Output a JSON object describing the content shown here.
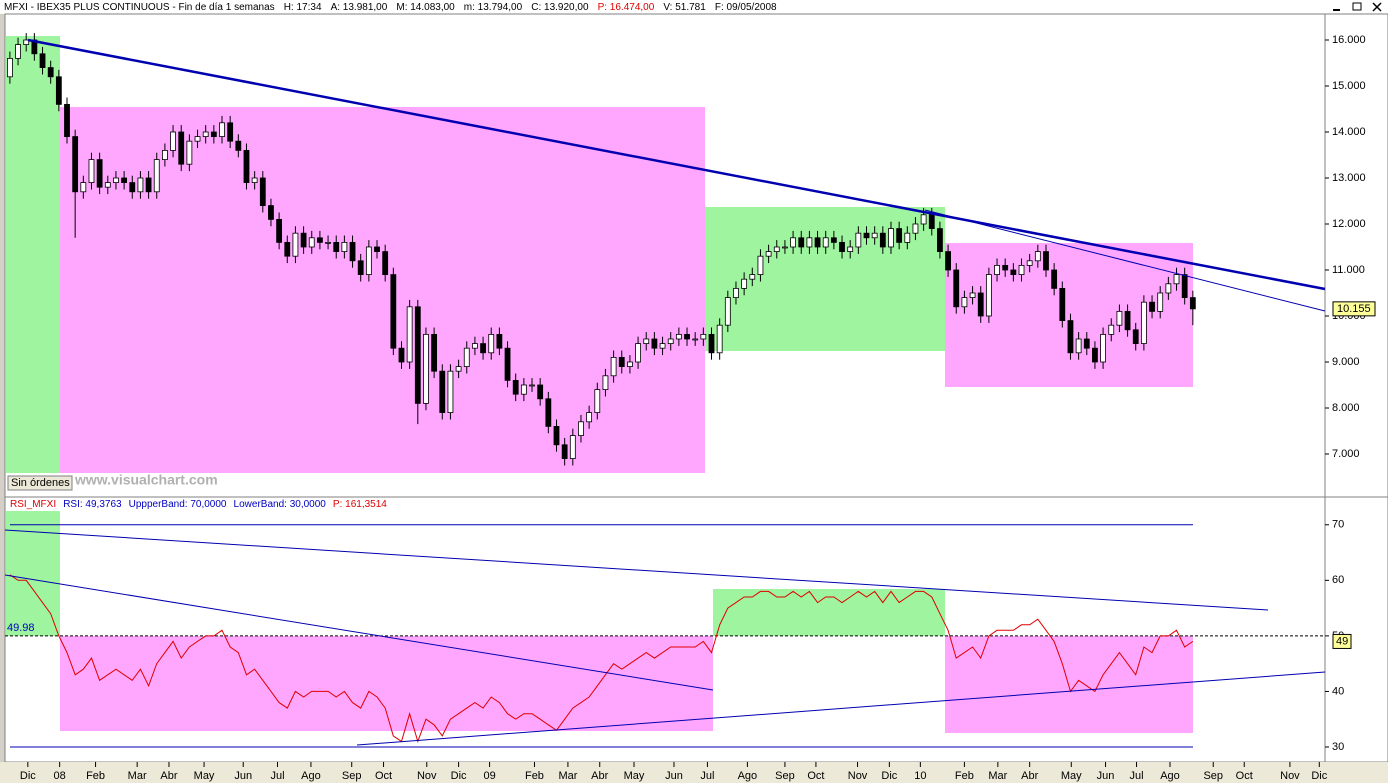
{
  "chart_data": [
    {
      "type": "candlestick",
      "title_items": [
        "MFXI - IBEX35 PLUS CONTINUOUS - Fin de día 1 semanas",
        "H: 17:34",
        "A: 13.981,00",
        "M: 14.083,00",
        "m: 13.794,00",
        "C: 13.920,00",
        "P: 16.474,00",
        "V: 51.781",
        "F: 09/05/2008"
      ],
      "status_label": "Sin órdenes",
      "watermark": "www.visualchart.com",
      "last_label": "10.155",
      "ylim": [
        6065,
        16565
      ],
      "yticks": [
        {
          "value": 7000,
          "label": "7.000"
        },
        {
          "value": 8000,
          "label": "8.000"
        },
        {
          "value": 9000,
          "label": "9.000"
        },
        {
          "value": 10000,
          "label": "10.000"
        },
        {
          "value": 11000,
          "label": "11.000"
        },
        {
          "value": 12000,
          "label": "12.000"
        },
        {
          "value": 13000,
          "label": "13.000"
        },
        {
          "value": 14000,
          "label": "14.000"
        },
        {
          "value": 15000,
          "label": "15.000"
        },
        {
          "value": 16000,
          "label": "16.000"
        }
      ],
      "up_color": "#ffffff",
      "down_color": "#000000",
      "candles": [
        [
          15200,
          15750,
          15050,
          15600
        ],
        [
          15600,
          16050,
          15450,
          15900
        ],
        [
          15900,
          16150,
          15750,
          16000
        ],
        [
          16000,
          16150,
          15550,
          15700
        ],
        [
          15700,
          15850,
          15250,
          15400
        ],
        [
          15400,
          15550,
          15050,
          15200
        ],
        [
          15200,
          15350,
          14450,
          14600
        ],
        [
          14600,
          14750,
          13750,
          13900
        ],
        [
          13900,
          14050,
          11700,
          12700
        ],
        [
          12700,
          13050,
          12550,
          12900
        ],
        [
          12900,
          13550,
          12750,
          13400
        ],
        [
          13400,
          13550,
          12650,
          12800
        ],
        [
          12800,
          13050,
          12650,
          12900
        ],
        [
          12900,
          13150,
          12750,
          13000
        ],
        [
          13000,
          13150,
          12750,
          12900
        ],
        [
          12900,
          13050,
          12550,
          12700
        ],
        [
          12700,
          13150,
          12550,
          13000
        ],
        [
          13000,
          13150,
          12550,
          12700
        ],
        [
          12700,
          13550,
          12550,
          13400
        ],
        [
          13400,
          13750,
          13250,
          13600
        ],
        [
          13600,
          14150,
          13450,
          14000
        ],
        [
          14000,
          14150,
          13150,
          13300
        ],
        [
          13300,
          13950,
          13150,
          13800
        ],
        [
          13800,
          14050,
          13650,
          13900
        ],
        [
          13900,
          14150,
          13750,
          14000
        ],
        [
          14000,
          14150,
          13750,
          13900
        ],
        [
          13900,
          14350,
          13750,
          14200
        ],
        [
          14200,
          14350,
          13650,
          13800
        ],
        [
          13800,
          13950,
          13450,
          13600
        ],
        [
          13600,
          13750,
          12750,
          12900
        ],
        [
          12900,
          13150,
          12750,
          13000
        ],
        [
          13000,
          13150,
          12250,
          12400
        ],
        [
          12400,
          12550,
          11950,
          12100
        ],
        [
          12100,
          12250,
          11450,
          11600
        ],
        [
          11600,
          11750,
          11150,
          11300
        ],
        [
          11300,
          11950,
          11150,
          11800
        ],
        [
          11800,
          11950,
          11350,
          11500
        ],
        [
          11500,
          11850,
          11350,
          11700
        ],
        [
          11700,
          11850,
          11450,
          11600
        ],
        [
          11600,
          11750,
          11450,
          11600
        ],
        [
          11600,
          11750,
          11250,
          11400
        ],
        [
          11400,
          11750,
          11250,
          11600
        ],
        [
          11600,
          11750,
          11050,
          11200
        ],
        [
          11200,
          11350,
          10750,
          10900
        ],
        [
          10900,
          11650,
          10750,
          11500
        ],
        [
          11500,
          11650,
          11250,
          11400
        ],
        [
          11400,
          11550,
          10750,
          10900
        ],
        [
          10900,
          11050,
          9150,
          9300
        ],
        [
          9300,
          9450,
          8850,
          9000
        ],
        [
          9000,
          10350,
          8850,
          10200
        ],
        [
          10200,
          10350,
          7650,
          8100
        ],
        [
          8100,
          9750,
          7950,
          9600
        ],
        [
          9600,
          9750,
          8650,
          8800
        ],
        [
          8800,
          8950,
          7750,
          7900
        ],
        [
          7900,
          8950,
          7750,
          8800
        ],
        [
          8800,
          9050,
          8650,
          8900
        ],
        [
          8900,
          9450,
          8750,
          9300
        ],
        [
          9300,
          9550,
          9150,
          9400
        ],
        [
          9400,
          9550,
          9050,
          9200
        ],
        [
          9200,
          9750,
          9050,
          9600
        ],
        [
          9600,
          9750,
          9150,
          9300
        ],
        [
          9300,
          9450,
          8450,
          8600
        ],
        [
          8600,
          8750,
          8150,
          8300
        ],
        [
          8300,
          8650,
          8150,
          8500
        ],
        [
          8500,
          8650,
          8350,
          8500
        ],
        [
          8500,
          8650,
          8050,
          8200
        ],
        [
          8200,
          8350,
          7450,
          7600
        ],
        [
          7600,
          7750,
          7050,
          7200
        ],
        [
          7200,
          7350,
          6750,
          6900
        ],
        [
          6900,
          7550,
          6750,
          7400
        ],
        [
          7400,
          7850,
          7250,
          7700
        ],
        [
          7700,
          8050,
          7550,
          7900
        ],
        [
          7900,
          8550,
          7750,
          8400
        ],
        [
          8400,
          8850,
          8250,
          8700
        ],
        [
          8700,
          9250,
          8550,
          9100
        ],
        [
          9100,
          9250,
          8750,
          8900
        ],
        [
          8900,
          9150,
          8750,
          9000
        ],
        [
          9000,
          9550,
          8850,
          9400
        ],
        [
          9400,
          9650,
          9250,
          9500
        ],
        [
          9500,
          9650,
          9150,
          9300
        ],
        [
          9300,
          9550,
          9150,
          9400
        ],
        [
          9400,
          9650,
          9250,
          9500
        ],
        [
          9500,
          9750,
          9350,
          9600
        ],
        [
          9600,
          9750,
          9350,
          9500
        ],
        [
          9500,
          9650,
          9350,
          9500
        ],
        [
          9500,
          9750,
          9350,
          9600
        ],
        [
          9600,
          9750,
          9050,
          9200
        ],
        [
          9200,
          9950,
          9050,
          9800
        ],
        [
          9800,
          10550,
          9650,
          10400
        ],
        [
          10400,
          10750,
          10250,
          10600
        ],
        [
          10600,
          10950,
          10450,
          10800
        ],
        [
          10800,
          11050,
          10650,
          10900
        ],
        [
          10900,
          11450,
          10750,
          11300
        ],
        [
          11300,
          11550,
          11150,
          11400
        ],
        [
          11400,
          11650,
          11250,
          11500
        ],
        [
          11500,
          11650,
          11350,
          11500
        ],
        [
          11500,
          11850,
          11350,
          11700
        ],
        [
          11700,
          11850,
          11350,
          11500
        ],
        [
          11500,
          11850,
          11350,
          11700
        ],
        [
          11700,
          11850,
          11350,
          11500
        ],
        [
          11500,
          11850,
          11350,
          11700
        ],
        [
          11700,
          11850,
          11450,
          11600
        ],
        [
          11600,
          11750,
          11250,
          11400
        ],
        [
          11400,
          11650,
          11250,
          11500
        ],
        [
          11500,
          11950,
          11350,
          11800
        ],
        [
          11800,
          11950,
          11550,
          11700
        ],
        [
          11700,
          11950,
          11550,
          11800
        ],
        [
          11800,
          11950,
          11350,
          11500
        ],
        [
          11500,
          12050,
          11350,
          11900
        ],
        [
          11900,
          12050,
          11450,
          11600
        ],
        [
          11600,
          11950,
          11450,
          11800
        ],
        [
          11800,
          12150,
          11650,
          12000
        ],
        [
          12000,
          12350,
          11850,
          12200
        ],
        [
          12200,
          12350,
          11750,
          11900
        ],
        [
          11900,
          12050,
          11250,
          11400
        ],
        [
          11400,
          11550,
          10850,
          11000
        ],
        [
          11000,
          11150,
          10050,
          10200
        ],
        [
          10200,
          10550,
          10050,
          10400
        ],
        [
          10400,
          10650,
          10250,
          10500
        ],
        [
          10500,
          10650,
          9850,
          10000
        ],
        [
          10000,
          11050,
          9850,
          10900
        ],
        [
          10900,
          11250,
          10750,
          11100
        ],
        [
          11100,
          11250,
          10850,
          11000
        ],
        [
          11000,
          11150,
          10750,
          10900
        ],
        [
          10900,
          11250,
          10750,
          11100
        ],
        [
          11100,
          11350,
          10950,
          11200
        ],
        [
          11200,
          11550,
          11050,
          11400
        ],
        [
          11400,
          11550,
          10850,
          11000
        ],
        [
          11000,
          11150,
          10450,
          10600
        ],
        [
          10600,
          10750,
          9750,
          9900
        ],
        [
          9900,
          10050,
          9050,
          9200
        ],
        [
          9200,
          9650,
          9050,
          9500
        ],
        [
          9500,
          9650,
          9150,
          9300
        ],
        [
          9300,
          9450,
          8850,
          9000
        ],
        [
          9000,
          9750,
          8850,
          9600
        ],
        [
          9600,
          9950,
          9450,
          9800
        ],
        [
          9800,
          10250,
          9650,
          10100
        ],
        [
          10100,
          10250,
          9550,
          9700
        ],
        [
          9700,
          9850,
          9250,
          9400
        ],
        [
          9400,
          10450,
          9250,
          10300
        ],
        [
          10300,
          10450,
          9950,
          10100
        ],
        [
          10100,
          10650,
          9950,
          10500
        ],
        [
          10500,
          10850,
          10350,
          10700
        ],
        [
          10700,
          11050,
          10550,
          10900
        ],
        [
          10900,
          11050,
          10250,
          10400
        ],
        [
          10400,
          10550,
          9800,
          10155
        ]
      ]
    },
    {
      "type": "line",
      "title_items": [
        "RSI_MFXI",
        "RSI: 49,3763",
        "UppperBand: 70,0000",
        "LowerBand: 30,0000",
        "P: 161,3514"
      ],
      "color": "#e00000",
      "upper_band": 70,
      "lower_band": 30,
      "mid_band": 50,
      "band_label": "49.98",
      "last_label": "49",
      "ylim": [
        27.3,
        75
      ],
      "yticks": [
        30,
        40,
        50,
        60,
        70
      ],
      "xlim": [
        -0.6,
        161.2
      ],
      "xticks": [
        {
          "value": 2.2,
          "label": "Dic"
        },
        {
          "value": 6.1,
          "label": "08"
        },
        {
          "value": 10.5,
          "label": "Feb"
        },
        {
          "value": 15.6,
          "label": "Mar"
        },
        {
          "value": 19.5,
          "label": "Abr"
        },
        {
          "value": 23.8,
          "label": "May"
        },
        {
          "value": 28.6,
          "label": "Jun"
        },
        {
          "value": 32.8,
          "label": "Jul"
        },
        {
          "value": 36.9,
          "label": "Ago"
        },
        {
          "value": 41.9,
          "label": "Sep"
        },
        {
          "value": 45.8,
          "label": "Oct"
        },
        {
          "value": 51.1,
          "label": "Nov"
        },
        {
          "value": 55.0,
          "label": "Dic"
        },
        {
          "value": 58.8,
          "label": "09"
        },
        {
          "value": 64.3,
          "label": "Feb"
        },
        {
          "value": 68.4,
          "label": "Mar"
        },
        {
          "value": 72.3,
          "label": "Abr"
        },
        {
          "value": 76.5,
          "label": "May"
        },
        {
          "value": 81.4,
          "label": "Jun"
        },
        {
          "value": 85.5,
          "label": "Jul"
        },
        {
          "value": 90.4,
          "label": "Ago"
        },
        {
          "value": 95.0,
          "label": "Sep"
        },
        {
          "value": 98.8,
          "label": "Oct"
        },
        {
          "value": 103.9,
          "label": "Nov"
        },
        {
          "value": 107.8,
          "label": "Dic"
        },
        {
          "value": 111.6,
          "label": "10"
        },
        {
          "value": 117.0,
          "label": "Feb"
        },
        {
          "value": 121.1,
          "label": "Mar"
        },
        {
          "value": 125.0,
          "label": "Abr"
        },
        {
          "value": 130.1,
          "label": "May"
        },
        {
          "value": 134.3,
          "label": "Jun"
        },
        {
          "value": 138.1,
          "label": "Jul"
        },
        {
          "value": 142.2,
          "label": "Ago"
        },
        {
          "value": 147.5,
          "label": "Sep"
        },
        {
          "value": 151.3,
          "label": "Oct"
        },
        {
          "value": 156.9,
          "label": "Nov"
        },
        {
          "value": 160.5,
          "label": "Dic"
        }
      ],
      "values": [
        61,
        60,
        60,
        58,
        56,
        54,
        50,
        47,
        43,
        44,
        46,
        42,
        43,
        44,
        43,
        42,
        44,
        41,
        45,
        47,
        49,
        46,
        48,
        49,
        50,
        50,
        51,
        48,
        47,
        43,
        44,
        42,
        40,
        38,
        37,
        40,
        39,
        40,
        40,
        40,
        39,
        40,
        38,
        37,
        40,
        39,
        37,
        32,
        31,
        36,
        31,
        35,
        34,
        32,
        35,
        36,
        37,
        38,
        37,
        39,
        38,
        36,
        35,
        36,
        36,
        35,
        34,
        33,
        35,
        37,
        38,
        39,
        41,
        43,
        45,
        44,
        45,
        46,
        47,
        46,
        47,
        48,
        48,
        48,
        48,
        49,
        47,
        52,
        55,
        56,
        57,
        57,
        58,
        58,
        57,
        57,
        58,
        57,
        58,
        56,
        57,
        57,
        56,
        57,
        58,
        57,
        58,
        56,
        58,
        56,
        57,
        58,
        58,
        57,
        54,
        51,
        46,
        47,
        48,
        46,
        50,
        51,
        51,
        51,
        52,
        52,
        53,
        51,
        49,
        45,
        40,
        42,
        41,
        40,
        43,
        45,
        47,
        45,
        43,
        48,
        47,
        50,
        50,
        51,
        48,
        49
      ]
    }
  ]
}
